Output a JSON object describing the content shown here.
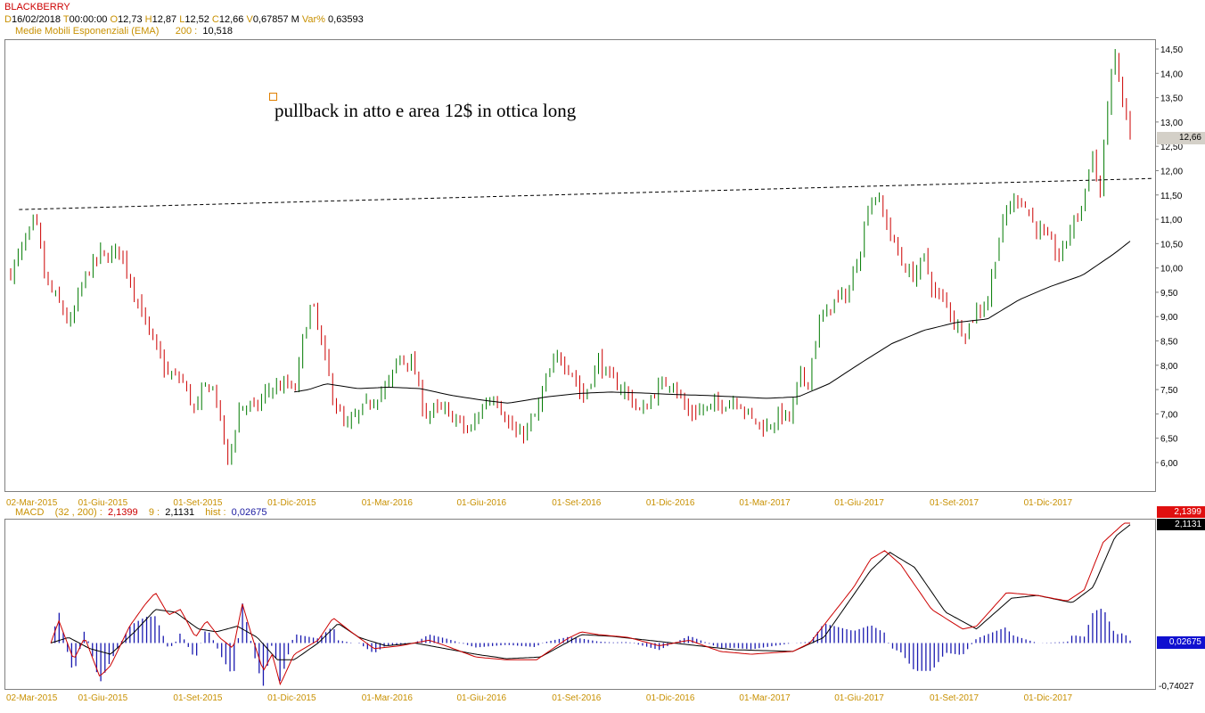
{
  "header": {
    "symbol": "BLACKBERRY",
    "ohlc": {
      "d_label": "D",
      "date": "16/02/2018",
      "t_label": "T",
      "time": "00:00:00",
      "o_label": "O",
      "open": "12,73",
      "h_label": "H",
      "high": "12,87",
      "l_label": "L",
      "low": "12,52",
      "c_label": "C",
      "close": "12,66",
      "v_label": "V",
      "volume": "0,67857 M",
      "var_label": "Var%",
      "var": "0,63593"
    },
    "ema": {
      "label": "Medie Mobili Esponenziali (EMA)",
      "period": "200",
      "sep": ":",
      "value": "10,518"
    }
  },
  "annotation": {
    "text": "pullback in atto e area 12$ in ottica long"
  },
  "price_tag": "12,66",
  "macd_header": {
    "label": "MACD",
    "params": "(32 , 200)",
    "sep": ":",
    "macd_value": "2,1399",
    "signal_period": "9",
    "signal_sep": ":",
    "signal_value": "2,1131",
    "hist_label": "hist",
    "hist_sep": ":",
    "hist_value": "0,02675"
  },
  "macd_tags": {
    "macd": "2,1399",
    "signal": "2,1131",
    "hist": "0,02675",
    "min": "-0,74027"
  },
  "date_labels": [
    "02-Mar-2015",
    "01-Giu-2015",
    "01-Set-2015",
    "01-Dic-2015",
    "01-Mar-2016",
    "01-Giu-2016",
    "01-Set-2016",
    "01-Dic-2016",
    "01-Mar-2017",
    "01-Giu-2017",
    "01-Set-2017",
    "01-Dic-2017"
  ],
  "colors": {
    "up": "#007a00",
    "down": "#cc0000",
    "ema": "#000000",
    "macd": "#cc0000",
    "signal": "#000000",
    "hist": "#1a1ab0",
    "accent": "#c89000"
  },
  "chart_data": [
    {
      "type": "candlestick",
      "title": "BLACKBERRY",
      "ylim": [
        5.8,
        14.7
      ],
      "yticks": [
        "14,50",
        "14,00",
        "13,50",
        "13,00",
        "12,50",
        "12,00",
        "11,50",
        "11,00",
        "10,50",
        "10,00",
        "9,50",
        "9,00",
        "8,50",
        "8,00",
        "7,50",
        "7,00",
        "6,50",
        "6,00"
      ],
      "x": [
        "02-Mar-2015",
        "01-Giu-2015",
        "01-Set-2015",
        "01-Dic-2015",
        "01-Mar-2016",
        "01-Giu-2016",
        "01-Set-2016",
        "01-Dic-2016",
        "01-Mar-2017",
        "01-Giu-2017",
        "01-Set-2017",
        "01-Dic-2017",
        "16-Feb-2018"
      ],
      "close_path": [
        [
          "02-Mar-2015",
          9.9
        ],
        [
          "15-Mar-2015",
          10.5
        ],
        [
          "26-Mar-2015",
          11.0
        ],
        [
          "05-Apr-2015",
          9.7
        ],
        [
          "20-Apr-2015",
          9.2
        ],
        [
          "28-Apr-2015",
          8.8
        ],
        [
          "12-May-2015",
          9.8
        ],
        [
          "28-May-2015",
          10.3
        ],
        [
          "01-Jun-2015",
          10.2
        ],
        [
          "15-Jun-2015",
          10.4
        ],
        [
          "28-Jun-2015",
          9.6
        ],
        [
          "15-Jul-2015",
          8.6
        ],
        [
          "01-Aug-2015",
          7.8
        ],
        [
          "15-Aug-2015",
          7.7
        ],
        [
          "28-Aug-2015",
          7.0
        ],
        [
          "05-Sep-2015",
          7.6
        ],
        [
          "15-Sep-2015",
          7.5
        ],
        [
          "28-Sep-2015",
          6.0
        ],
        [
          "10-Oct-2015",
          7.2
        ],
        [
          "25-Oct-2015",
          7.1
        ],
        [
          "05-Nov-2015",
          7.5
        ],
        [
          "25-Nov-2015",
          7.6
        ],
        [
          "01-Dec-2015",
          7.4
        ],
        [
          "10-Dec-2015",
          8.6
        ],
        [
          "18-Dec-2015",
          9.3
        ],
        [
          "28-Dec-2015",
          8.4
        ],
        [
          "08-Jan-2016",
          7.3
        ],
        [
          "20-Jan-2016",
          6.7
        ],
        [
          "01-Feb-2016",
          7.0
        ],
        [
          "15-Feb-2016",
          7.3
        ],
        [
          "01-Mar-2016",
          7.6
        ],
        [
          "12-Mar-2016",
          8.2
        ],
        [
          "25-Mar-2016",
          8.0
        ],
        [
          "05-Apr-2016",
          7.0
        ],
        [
          "20-Apr-2016",
          7.1
        ],
        [
          "05-May-2016",
          6.9
        ],
        [
          "18-May-2016",
          6.6
        ],
        [
          "01-Jun-2016",
          7.2
        ],
        [
          "12-Jun-2016",
          7.4
        ],
        [
          "25-Jun-2016",
          6.8
        ],
        [
          "05-Jul-2016",
          6.5
        ],
        [
          "20-Jul-2016",
          6.9
        ],
        [
          "01-Aug-2016",
          7.7
        ],
        [
          "12-Aug-2016",
          8.2
        ],
        [
          "25-Aug-2016",
          7.9
        ],
        [
          "05-Sep-2016",
          7.3
        ],
        [
          "20-Sep-2016",
          8.1
        ],
        [
          "01-Oct-2016",
          7.7
        ],
        [
          "15-Oct-2016",
          7.5
        ],
        [
          "01-Nov-2016",
          7.0
        ],
        [
          "15-Nov-2016",
          7.5
        ],
        [
          "01-Dec-2016",
          7.7
        ],
        [
          "15-Dec-2016",
          7.0
        ],
        [
          "01-Jan-2017",
          7.1
        ],
        [
          "15-Jan-2017",
          7.2
        ],
        [
          "01-Feb-2017",
          7.3
        ],
        [
          "15-Feb-2017",
          6.9
        ],
        [
          "01-Mar-2017",
          6.7
        ],
        [
          "15-Mar-2017",
          7.0
        ],
        [
          "25-Mar-2017",
          6.9
        ],
        [
          "02-Apr-2017",
          7.8
        ],
        [
          "10-Apr-2017",
          7.6
        ],
        [
          "20-Apr-2017",
          8.8
        ],
        [
          "05-May-2017",
          9.3
        ],
        [
          "20-May-2017",
          9.5
        ],
        [
          "01-Jun-2017",
          10.5
        ],
        [
          "08-Jun-2017",
          11.3
        ],
        [
          "15-Jun-2017",
          11.5
        ],
        [
          "28-Jun-2017",
          10.8
        ],
        [
          "08-Jul-2017",
          10.2
        ],
        [
          "20-Jul-2017",
          9.8
        ],
        [
          "01-Aug-2017",
          10.2
        ],
        [
          "10-Aug-2017",
          9.5
        ],
        [
          "22-Aug-2017",
          9.3
        ],
        [
          "01-Sep-2017",
          8.8
        ],
        [
          "10-Sep-2017",
          8.7
        ],
        [
          "20-Sep-2017",
          9.1
        ],
        [
          "01-Oct-2017",
          9.3
        ],
        [
          "10-Oct-2017",
          10.4
        ],
        [
          "20-Oct-2017",
          11.2
        ],
        [
          "01-Nov-2017",
          11.5
        ],
        [
          "15-Nov-2017",
          10.9
        ],
        [
          "01-Dec-2017",
          10.5
        ],
        [
          "10-Dec-2017",
          10.2
        ],
        [
          "20-Dec-2017",
          10.8
        ],
        [
          "01-Jan-2018",
          11.3
        ],
        [
          "10-Jan-2018",
          12.4
        ],
        [
          "18-Jan-2018",
          11.5
        ],
        [
          "26-Jan-2018",
          13.6
        ],
        [
          "02-Feb-2018",
          14.4
        ],
        [
          "08-Feb-2018",
          13.4
        ],
        [
          "12-Feb-2018",
          13.2
        ],
        [
          "16-Feb-2018",
          12.66
        ]
      ],
      "ema200_path": [
        [
          "01-Dec-2015",
          7.45
        ],
        [
          "15-Dec-2015",
          7.5
        ],
        [
          "01-Jan-2016",
          7.62
        ],
        [
          "01-Feb-2016",
          7.52
        ],
        [
          "01-Mar-2016",
          7.55
        ],
        [
          "01-Apr-2016",
          7.52
        ],
        [
          "01-May-2016",
          7.38
        ],
        [
          "01-Jun-2016",
          7.28
        ],
        [
          "25-Jun-2016",
          7.22
        ],
        [
          "01-Aug-2016",
          7.35
        ],
        [
          "01-Sep-2016",
          7.42
        ],
        [
          "01-Oct-2016",
          7.45
        ],
        [
          "01-Nov-2016",
          7.43
        ],
        [
          "01-Dec-2016",
          7.4
        ],
        [
          "01-Jan-2017",
          7.38
        ],
        [
          "01-Feb-2017",
          7.35
        ],
        [
          "01-Mar-2017",
          7.32
        ],
        [
          "01-Apr-2017",
          7.35
        ],
        [
          "01-May-2017",
          7.62
        ],
        [
          "01-Jun-2017",
          8.05
        ],
        [
          "01-Jul-2017",
          8.45
        ],
        [
          "01-Aug-2017",
          8.72
        ],
        [
          "01-Sep-2017",
          8.88
        ],
        [
          "01-Oct-2017",
          8.95
        ],
        [
          "01-Nov-2017",
          9.35
        ],
        [
          "01-Dec-2017",
          9.62
        ],
        [
          "01-Jan-2018",
          9.85
        ],
        [
          "01-Feb-2018",
          10.3
        ],
        [
          "16-Feb-2018",
          10.55
        ]
      ],
      "resistance_line": {
        "from": [
          "10-Mar-2015",
          11.2
        ],
        "to": [
          "16-Feb-2018",
          11.82
        ],
        "style": "dashed"
      }
    },
    {
      "type": "line",
      "title": "MACD",
      "ylim": [
        -0.74027,
        2.1399
      ],
      "series": [
        {
          "name": "MACD",
          "values": [
            [
              "02-Mar-2015",
              0.0
            ],
            [
              "10-Mar-2015",
              0.4
            ],
            [
              "25-Mar-2015",
              -0.3
            ],
            [
              "05-Apr-2015",
              0.1
            ],
            [
              "20-Apr-2015",
              -0.6
            ],
            [
              "01-May-2015",
              -0.4
            ],
            [
              "20-May-2015",
              0.3
            ],
            [
              "05-Jun-2015",
              0.7
            ],
            [
              "15-Jun-2015",
              0.9
            ],
            [
              "28-Jun-2015",
              0.5
            ],
            [
              "10-Jul-2015",
              0.6
            ],
            [
              "25-Jul-2015",
              0.1
            ],
            [
              "05-Aug-2015",
              0.4
            ],
            [
              "18-Aug-2015",
              0.1
            ],
            [
              "01-Sep-2015",
              -0.1
            ],
            [
              "10-Sep-2015",
              0.7
            ],
            [
              "20-Sep-2015",
              0.1
            ],
            [
              "01-Oct-2015",
              -0.5
            ],
            [
              "10-Oct-2015",
              -0.2
            ],
            [
              "18-Oct-2015",
              -0.74
            ],
            [
              "01-Nov-2015",
              -0.2
            ],
            [
              "25-Nov-2015",
              0.05
            ],
            [
              "10-Dec-2015",
              0.45
            ],
            [
              "28-Dec-2015",
              0.2
            ],
            [
              "20-Jan-2016",
              -0.1
            ],
            [
              "15-Feb-2016",
              -0.05
            ],
            [
              "15-Mar-2016",
              0.05
            ],
            [
              "01-Apr-2016",
              -0.05
            ],
            [
              "01-May-2016",
              -0.25
            ],
            [
              "01-Jun-2016",
              -0.3
            ],
            [
              "01-Jul-2016",
              -0.3
            ],
            [
              "01-Aug-2016",
              0.08
            ],
            [
              "15-Aug-2016",
              0.2
            ],
            [
              "01-Sep-2016",
              0.15
            ],
            [
              "01-Oct-2016",
              0.1
            ],
            [
              "01-Nov-2016",
              -0.05
            ],
            [
              "01-Dec-2016",
              0.05
            ],
            [
              "01-Jan-2017",
              -0.15
            ],
            [
              "01-Feb-2017",
              -0.2
            ],
            [
              "15-Mar-2017",
              -0.15
            ],
            [
              "01-Apr-2017",
              0.0
            ],
            [
              "15-May-2017",
              1.0
            ],
            [
              "01-Jun-2017",
              1.5
            ],
            [
              "15-Jun-2017",
              1.65
            ],
            [
              "01-Jul-2017",
              1.4
            ],
            [
              "01-Aug-2017",
              0.6
            ],
            [
              "01-Sep-2017",
              0.25
            ],
            [
              "15-Sep-2017",
              0.3
            ],
            [
              "15-Oct-2017",
              0.9
            ],
            [
              "15-Nov-2017",
              0.85
            ],
            [
              "15-Dec-2017",
              0.75
            ],
            [
              "01-Jan-2018",
              0.95
            ],
            [
              "20-Jan-2018",
              1.8
            ],
            [
              "10-Feb-2018",
              2.14
            ],
            [
              "16-Feb-2018",
              2.1399
            ]
          ]
        },
        {
          "name": "9",
          "values": [
            [
              "02-Mar-2015",
              0.0
            ],
            [
              "20-Mar-2015",
              0.1
            ],
            [
              "10-Apr-2015",
              -0.1
            ],
            [
              "01-May-2015",
              -0.2
            ],
            [
              "25-May-2015",
              0.2
            ],
            [
              "15-Jun-2015",
              0.6
            ],
            [
              "05-Jul-2015",
              0.55
            ],
            [
              "28-Jul-2015",
              0.25
            ],
            [
              "15-Aug-2015",
              0.2
            ],
            [
              "05-Sep-2015",
              0.3
            ],
            [
              "25-Sep-2015",
              0.1
            ],
            [
              "15-Oct-2015",
              -0.3
            ],
            [
              "01-Nov-2015",
              -0.3
            ],
            [
              "25-Nov-2015",
              0.0
            ],
            [
              "15-Dec-2015",
              0.35
            ],
            [
              "05-Jan-2016",
              0.1
            ],
            [
              "01-Feb-2016",
              -0.05
            ],
            [
              "01-Mar-2016",
              0.0
            ],
            [
              "01-May-2016",
              -0.2
            ],
            [
              "01-Jun-2016",
              -0.28
            ],
            [
              "05-Jul-2016",
              -0.25
            ],
            [
              "15-Aug-2016",
              0.15
            ],
            [
              "15-Sep-2016",
              0.12
            ],
            [
              "15-Nov-2016",
              0.0
            ],
            [
              "15-Jan-2017",
              -0.12
            ],
            [
              "15-Mar-2017",
              -0.15
            ],
            [
              "15-Apr-2017",
              0.1
            ],
            [
              "01-Jun-2017",
              1.3
            ],
            [
              "20-Jun-2017",
              1.62
            ],
            [
              "15-Jul-2017",
              1.35
            ],
            [
              "15-Aug-2017",
              0.55
            ],
            [
              "15-Sep-2017",
              0.25
            ],
            [
              "20-Oct-2017",
              0.8
            ],
            [
              "15-Nov-2017",
              0.85
            ],
            [
              "20-Dec-2017",
              0.72
            ],
            [
              "10-Jan-2018",
              1.0
            ],
            [
              "01-Feb-2018",
              1.9
            ],
            [
              "16-Feb-2018",
              2.1131
            ]
          ]
        }
      ]
    }
  ]
}
